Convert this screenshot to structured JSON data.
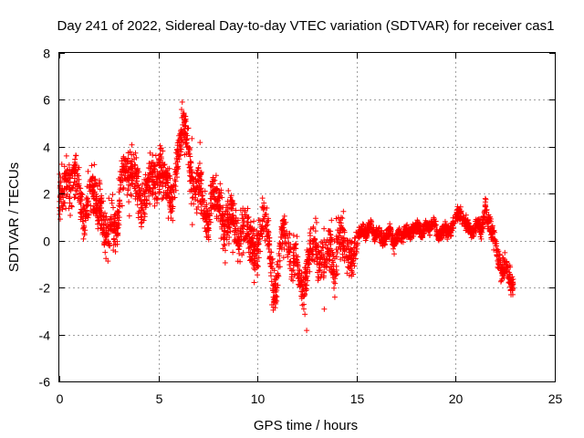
{
  "chart_data": {
    "type": "scatter",
    "title": "Day 241 of 2022, Sidereal Day-to-day VTEC variation (SDTVAR) for receiver cas1",
    "xlabel": "GPS time / hours",
    "ylabel": "SDTVAR / TECUs",
    "xlim": [
      0,
      25
    ],
    "ylim": [
      -6,
      8
    ],
    "xticks": [
      0,
      5,
      10,
      15,
      20,
      25
    ],
    "yticks": [
      -6,
      -4,
      -2,
      0,
      2,
      4,
      6,
      8
    ],
    "grid": true,
    "marker": "plus",
    "color": "#ff0000",
    "series": [
      {
        "name": "SDTVAR",
        "trend": [
          [
            0.0,
            2.0
          ],
          [
            0.3,
            2.4
          ],
          [
            0.5,
            2.3
          ],
          [
            0.7,
            2.5
          ],
          [
            0.9,
            3.0
          ],
          [
            1.1,
            1.5
          ],
          [
            1.3,
            1.0
          ],
          [
            1.5,
            1.8
          ],
          [
            1.7,
            2.2
          ],
          [
            1.9,
            1.5
          ],
          [
            2.1,
            1.2
          ],
          [
            2.3,
            0.2
          ],
          [
            2.5,
            0.5
          ],
          [
            2.7,
            1.0
          ],
          [
            2.9,
            0.3
          ],
          [
            3.1,
            2.5
          ],
          [
            3.3,
            3.2
          ],
          [
            3.5,
            2.8
          ],
          [
            3.7,
            3.0
          ],
          [
            3.9,
            2.6
          ],
          [
            4.1,
            1.5
          ],
          [
            4.3,
            1.8
          ],
          [
            4.5,
            2.5
          ],
          [
            4.7,
            2.8
          ],
          [
            4.9,
            2.2
          ],
          [
            5.1,
            3.0
          ],
          [
            5.3,
            2.6
          ],
          [
            5.5,
            2.2
          ],
          [
            5.7,
            1.5
          ],
          [
            5.9,
            2.8
          ],
          [
            6.1,
            4.5
          ],
          [
            6.3,
            5.2
          ],
          [
            6.5,
            4.0
          ],
          [
            6.7,
            2.8
          ],
          [
            6.9,
            2.0
          ],
          [
            7.1,
            2.5
          ],
          [
            7.3,
            1.5
          ],
          [
            7.5,
            0.5
          ],
          [
            7.7,
            2.2
          ],
          [
            7.9,
            2.0
          ],
          [
            8.1,
            1.6
          ],
          [
            8.3,
            0.5
          ],
          [
            8.5,
            0.8
          ],
          [
            8.7,
            1.2
          ],
          [
            8.9,
            0.6
          ],
          [
            9.1,
            -0.3
          ],
          [
            9.3,
            0.8
          ],
          [
            9.5,
            0.3
          ],
          [
            9.7,
            0.0
          ],
          [
            9.9,
            -0.5
          ],
          [
            10.1,
            0.2
          ],
          [
            10.3,
            1.0
          ],
          [
            10.5,
            0.8
          ],
          [
            10.7,
            -1.5
          ],
          [
            10.9,
            -2.5
          ],
          [
            11.1,
            -0.5
          ],
          [
            11.3,
            0.5
          ],
          [
            11.5,
            0.3
          ],
          [
            11.7,
            -1.0
          ],
          [
            11.9,
            -0.8
          ],
          [
            12.1,
            -1.5
          ],
          [
            12.3,
            -2.5
          ],
          [
            12.5,
            -1.2
          ],
          [
            12.7,
            -0.3
          ],
          [
            12.9,
            0.0
          ],
          [
            13.1,
            -1.0
          ],
          [
            13.3,
            -0.5
          ],
          [
            13.5,
            -0.8
          ],
          [
            13.7,
            -0.2
          ],
          [
            13.9,
            -1.5
          ],
          [
            14.1,
            0.0
          ],
          [
            14.3,
            0.3
          ],
          [
            14.5,
            -0.6
          ],
          [
            14.7,
            -0.8
          ],
          [
            14.9,
            -0.6
          ],
          [
            15.1,
            0.2
          ],
          [
            15.3,
            0.5
          ],
          [
            15.5,
            0.3
          ],
          [
            15.7,
            0.8
          ],
          [
            15.9,
            0.2
          ],
          [
            16.1,
            0.4
          ],
          [
            16.3,
            0.0
          ],
          [
            16.5,
            0.2
          ],
          [
            16.7,
            0.5
          ],
          [
            16.9,
            -0.2
          ],
          [
            17.1,
            0.3
          ],
          [
            17.3,
            0.1
          ],
          [
            17.5,
            0.4
          ],
          [
            17.7,
            0.3
          ],
          [
            17.9,
            0.5
          ],
          [
            18.1,
            0.6
          ],
          [
            18.3,
            0.3
          ],
          [
            18.5,
            0.7
          ],
          [
            18.7,
            0.5
          ],
          [
            18.9,
            0.8
          ],
          [
            19.1,
            0.2
          ],
          [
            19.3,
            0.3
          ],
          [
            19.5,
            0.5
          ],
          [
            19.7,
            0.4
          ],
          [
            19.9,
            0.7
          ],
          [
            20.1,
            1.2
          ],
          [
            20.3,
            1.0
          ],
          [
            20.5,
            0.8
          ],
          [
            20.7,
            0.5
          ],
          [
            20.9,
            0.3
          ],
          [
            21.1,
            0.8
          ],
          [
            21.3,
            0.4
          ],
          [
            21.5,
            1.5
          ],
          [
            21.7,
            0.6
          ],
          [
            21.9,
            0.2
          ],
          [
            22.1,
            -0.5
          ],
          [
            22.3,
            -1.2
          ],
          [
            22.5,
            -1.0
          ],
          [
            22.7,
            -1.6
          ],
          [
            22.9,
            -2.0
          ]
        ]
      }
    ]
  }
}
